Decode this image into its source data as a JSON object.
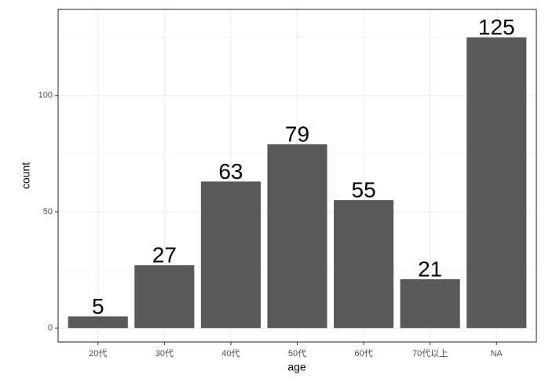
{
  "chart_data": {
    "type": "bar",
    "x_label": "age",
    "y_label": "count",
    "categories": [
      "20代",
      "30代",
      "40代",
      "50代",
      "60代",
      "70代以上",
      "NA"
    ],
    "values": [
      5,
      27,
      63,
      79,
      55,
      21,
      125
    ],
    "color": "#595959",
    "ylim": [
      -6,
      137
    ],
    "yticks": [
      0,
      50,
      100
    ],
    "yminorticks": [
      25,
      75,
      125
    ],
    "grid": true
  }
}
